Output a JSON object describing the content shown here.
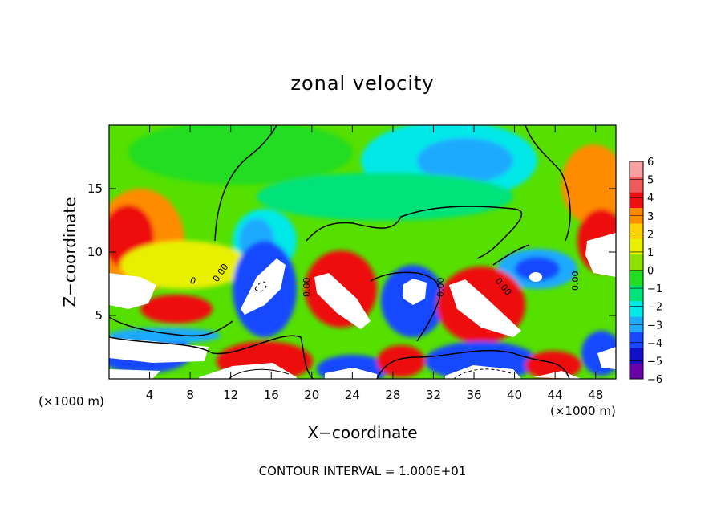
{
  "chart_data": {
    "type": "heatmap",
    "title": "zonal velocity",
    "xlabel": "X−coordinate",
    "ylabel": "Z−coordinate",
    "x_unit": "(×1000 m)",
    "x_unit_right": "(×1000 m)",
    "xlim": [
      0,
      50
    ],
    "ylim": [
      0,
      20
    ],
    "x_ticks": [
      4,
      8,
      12,
      16,
      20,
      24,
      28,
      32,
      36,
      40,
      44,
      48
    ],
    "y_ticks": [
      5,
      10,
      15
    ],
    "colorbar": {
      "levels": [
        6,
        5,
        4,
        3,
        2,
        1,
        0,
        -1,
        -2,
        -3,
        -4,
        -5,
        -6
      ],
      "labels": [
        "6",
        "5",
        "4",
        "3",
        "2",
        "1",
        "0",
        "−1",
        "−2",
        "−3",
        "−4",
        "−5",
        "−6"
      ],
      "colors": [
        "#f6a0a0",
        "#ef5a5a",
        "#ee1010",
        "#ff8c00",
        "#ffd000",
        "#e8f000",
        "#8ee000",
        "#22dd22",
        "#00e27a",
        "#00e8e8",
        "#1eaaff",
        "#1848ff",
        "#1010c8",
        "#6a00a8"
      ]
    },
    "contour_label": "0.00",
    "annotation": "CONTOUR INTERVAL = 1.000E+01"
  }
}
